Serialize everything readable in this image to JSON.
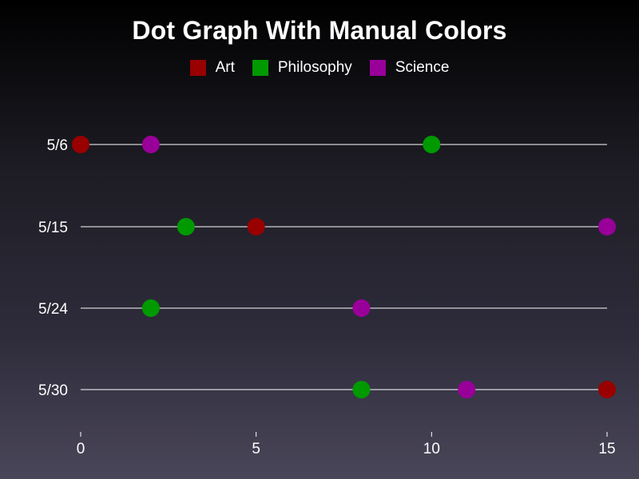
{
  "chart_data": {
    "type": "scatter",
    "title": "Dot Graph With Manual Colors",
    "categories": [
      "5/6",
      "5/15",
      "5/24",
      "5/30"
    ],
    "xlim": [
      0,
      15
    ],
    "x_ticks": [
      "0",
      "5",
      "10",
      "15"
    ],
    "legend_position": "top",
    "series": [
      {
        "name": "Art",
        "color": "#990000",
        "values": [
          0,
          5,
          null,
          15
        ]
      },
      {
        "name": "Philosophy",
        "color": "#009900",
        "values": [
          10,
          3,
          2,
          8
        ]
      },
      {
        "name": "Science",
        "color": "#990099",
        "values": [
          2,
          15,
          8,
          11
        ]
      }
    ]
  }
}
